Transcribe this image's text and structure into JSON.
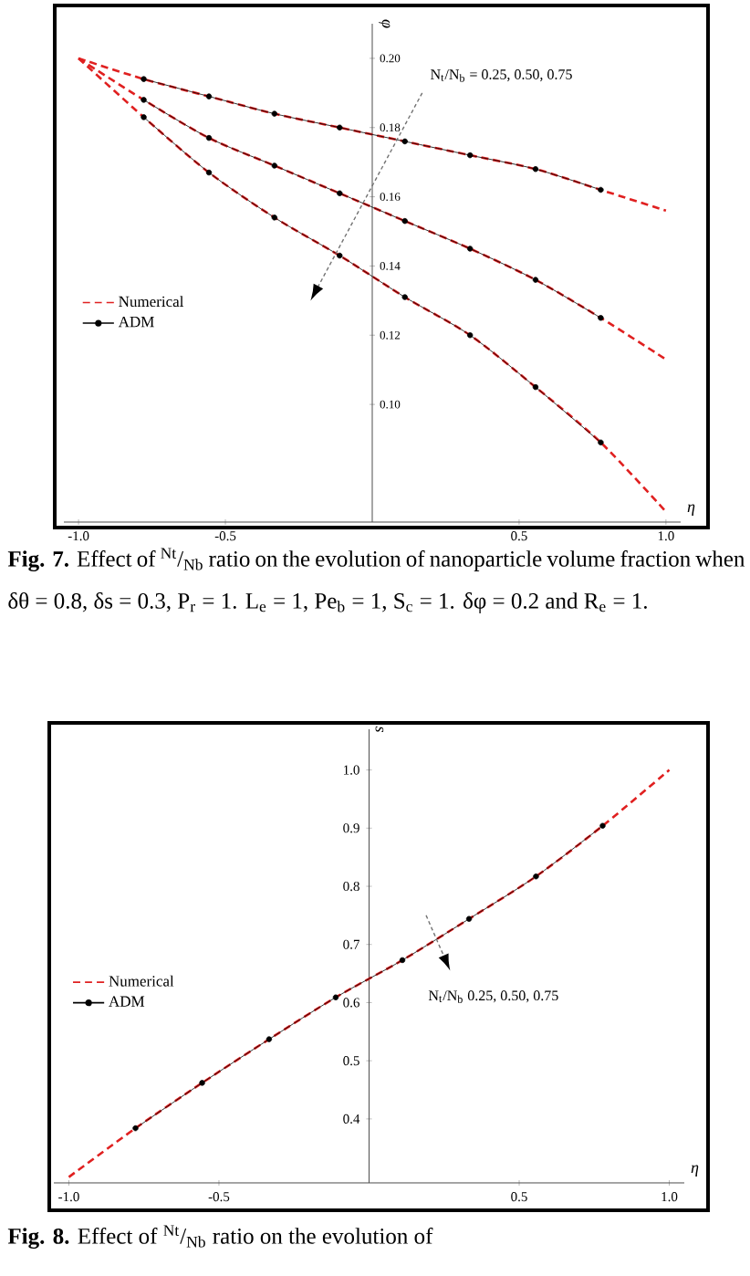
{
  "chart_data": [
    {
      "type": "line",
      "xlabel": "η",
      "ylabel": "φ",
      "xlim": [
        -1.05,
        1.05
      ],
      "ylim": [
        0.066,
        0.21
      ],
      "xticks": [
        {
          "value": -1,
          "label": "-1.0"
        },
        {
          "value": -0.5,
          "label": "-0.5"
        },
        {
          "value": 0.5,
          "label": "0.5"
        },
        {
          "value": 1,
          "label": "1.0"
        }
      ],
      "yticks": [
        {
          "value": 0.1,
          "label": "0.10"
        },
        {
          "value": 0.12,
          "label": "0.12"
        },
        {
          "value": 0.14,
          "label": "0.14"
        },
        {
          "value": 0.16,
          "label": "0.16"
        },
        {
          "value": 0.18,
          "label": "0.18"
        },
        {
          "value": 0.2,
          "label": "0.20"
        }
      ],
      "legend": "left",
      "series": [
        {
          "name": "Numerical",
          "color": "#e02020",
          "line_style": "dashed",
          "marker": "none",
          "x": [
            -1,
            -0.778,
            -0.556,
            -0.333,
            -0.111,
            0.111,
            0.333,
            0.556,
            0.778,
            1
          ],
          "values": [
            0.2,
            0.194,
            0.189,
            0.184,
            0.18,
            0.176,
            0.172,
            0.168,
            0.162,
            0.156
          ]
        },
        {
          "color": "#e02020",
          "line_style": "dashed",
          "marker": "none",
          "x": [
            -1,
            -0.778,
            -0.556,
            -0.333,
            -0.111,
            0.111,
            0.333,
            0.556,
            0.778,
            1
          ],
          "values": [
            0.2,
            0.188,
            0.177,
            0.169,
            0.161,
            0.153,
            0.145,
            0.136,
            0.125,
            0.113
          ]
        },
        {
          "color": "#e02020",
          "line_style": "dashed",
          "marker": "none",
          "x": [
            -1,
            -0.778,
            -0.556,
            -0.333,
            -0.111,
            0.111,
            0.333,
            0.556,
            0.778,
            1
          ],
          "values": [
            0.2,
            0.183,
            0.167,
            0.154,
            0.143,
            0.131,
            0.12,
            0.105,
            0.089,
            0.069
          ]
        },
        {
          "name": "ADM",
          "color": "#000000",
          "line_style": "solid",
          "marker": "circle",
          "x": [
            -0.778,
            -0.556,
            -0.333,
            -0.111,
            0.111,
            0.333,
            0.556,
            0.778
          ],
          "values": [
            0.194,
            0.189,
            0.184,
            0.18,
            0.176,
            0.172,
            0.168,
            0.162
          ]
        },
        {
          "color": "#000000",
          "line_style": "solid",
          "marker": "circle",
          "x": [
            -0.778,
            -0.556,
            -0.333,
            -0.111,
            0.111,
            0.333,
            0.556,
            0.778
          ],
          "values": [
            0.188,
            0.177,
            0.169,
            0.161,
            0.153,
            0.145,
            0.136,
            0.125
          ]
        },
        {
          "color": "#000000",
          "line_style": "solid",
          "marker": "circle",
          "x": [
            -0.778,
            -0.556,
            -0.333,
            -0.111,
            0.111,
            0.333,
            0.556,
            0.778
          ],
          "values": [
            0.183,
            0.167,
            0.154,
            0.143,
            0.131,
            0.12,
            0.105,
            0.089
          ]
        }
      ],
      "annotations": [
        "N$_{t}$/N$_{b}$ = 0.25, 0.50, 0.75",
        "**Fig. 7.** Effect of $^{Nt}$/$_{Nb}$ ratio on the evolution of nanoparticle volume fraction when δθ = 0.8, δs = 0.3, P$_{r}$ = 1. L$_{e}$ = 1, Pe$_{b}$ = 1, S$_{c}$ = 1. δφ = 0.2 and R$_{e}$ = 1."
      ]
    },
    {
      "type": "line",
      "xlabel": "η",
      "ylabel": "s",
      "xlim": [
        -1.05,
        1.05
      ],
      "ylim": [
        0.29,
        1.07
      ],
      "xticks": [
        {
          "value": -1,
          "label": "-1.0"
        },
        {
          "value": -0.5,
          "label": "-0.5"
        },
        {
          "value": 0.5,
          "label": "0.5"
        },
        {
          "value": 1,
          "label": "1.0"
        }
      ],
      "yticks": [
        {
          "value": 0.4,
          "label": "0.4"
        },
        {
          "value": 0.5,
          "label": "0.5"
        },
        {
          "value": 0.6,
          "label": "0.6"
        },
        {
          "value": 0.7,
          "label": "0.7"
        },
        {
          "value": 0.8,
          "label": "0.8"
        },
        {
          "value": 0.9,
          "label": "0.9"
        },
        {
          "value": 1.0,
          "label": "1.0"
        }
      ],
      "legend": "left",
      "series": [
        {
          "name": "Numerical",
          "color": "#e02020",
          "line_style": "dashed",
          "marker": "none",
          "x": [
            -1,
            -0.778,
            -0.556,
            -0.333,
            -0.111,
            0.111,
            0.333,
            0.556,
            0.778,
            1
          ],
          "values": [
            0.3,
            0.384,
            0.462,
            0.537,
            0.609,
            0.673,
            0.744,
            0.817,
            0.904,
            1.0
          ]
        },
        {
          "name": "ADM",
          "color": "#000000",
          "line_style": "solid",
          "marker": "circle",
          "x": [
            -0.778,
            -0.556,
            -0.333,
            -0.111,
            0.111,
            0.333,
            0.556,
            0.778
          ],
          "values": [
            0.384,
            0.462,
            0.537,
            0.609,
            0.673,
            0.744,
            0.817,
            0.904
          ]
        }
      ],
      "annotations": [
        "N$_{t}$/N$_{b}$ 0.25, 0.50, 0.75",
        "**Fig. 8.** Effect of $^{Nt}$/$_{Nb}$ ratio on the evolution of"
      ]
    }
  ]
}
